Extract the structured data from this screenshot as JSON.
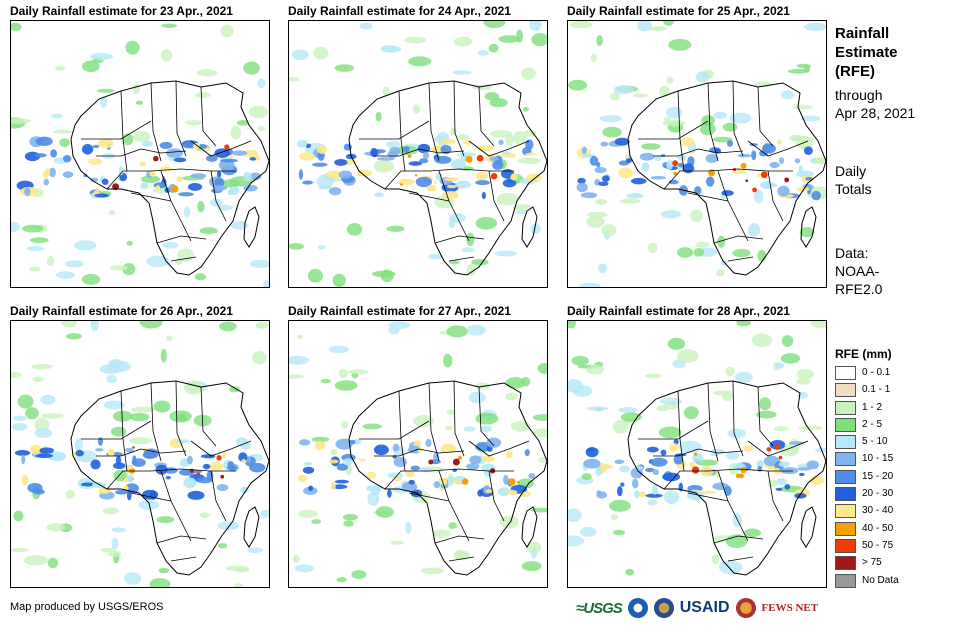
{
  "panels": [
    {
      "title": "Daily Rainfall estimate for 23 Apr., 2021"
    },
    {
      "title": "Daily Rainfall estimate for 24 Apr., 2021"
    },
    {
      "title": "Daily Rainfall estimate for 25 Apr., 2021"
    },
    {
      "title": "Daily Rainfall estimate for 26 Apr., 2021"
    },
    {
      "title": "Daily Rainfall estimate for 27 Apr., 2021"
    },
    {
      "title": "Daily Rainfall estimate for 28 Apr., 2021"
    }
  ],
  "side": {
    "title_lines": [
      "Rainfall",
      "Estimate",
      "(RFE)"
    ],
    "through_label": "through",
    "through_date": "Apr 28, 2021",
    "daily_lines": [
      "Daily",
      "Totals"
    ],
    "data_lines": [
      "Data:",
      "NOAA-",
      "RFE2.0"
    ]
  },
  "legend": {
    "title": "RFE (mm)",
    "items": [
      {
        "label": "0 - 0.1",
        "color": "#ffffff"
      },
      {
        "label": "0.1 - 1",
        "color": "#f2dcc0"
      },
      {
        "label": "1 - 2",
        "color": "#c9f2bd"
      },
      {
        "label": "2 - 5",
        "color": "#7ee07a"
      },
      {
        "label": "5 - 10",
        "color": "#b5e9f7"
      },
      {
        "label": "10 - 15",
        "color": "#7fb4ee"
      },
      {
        "label": "15 - 20",
        "color": "#4f8de6"
      },
      {
        "label": "20 - 30",
        "color": "#2060dd"
      },
      {
        "label": "30 - 40",
        "color": "#fde88b"
      },
      {
        "label": "40 - 50",
        "color": "#f5a000"
      },
      {
        "label": "50 - 75",
        "color": "#f03c00"
      },
      {
        "label": "> 75",
        "color": "#a01818"
      },
      {
        "label": "No Data",
        "color": "#999999"
      }
    ]
  },
  "footer": {
    "credit": "Map produced by USGS/EROS",
    "logos": {
      "usgs": "≈USGS",
      "usaid": "USAID",
      "fews": "FEWS NET"
    }
  }
}
